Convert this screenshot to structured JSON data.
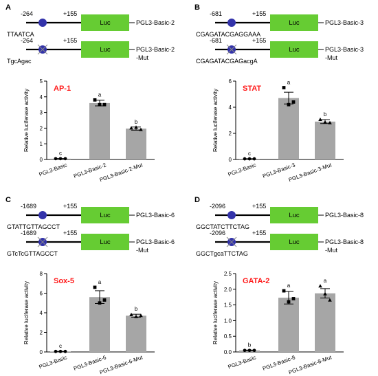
{
  "colors": {
    "bar_fill": "#a6a6a6",
    "luc_box": "#66cc33",
    "site_marker": "#3333aa",
    "tf_label": "#ff1a1a"
  },
  "panels": [
    {
      "letter": "A",
      "constructs": [
        {
          "start": "-264",
          "end": "+155",
          "luc": "Luc",
          "vector": [
            "PGL3-Basic-2"
          ],
          "sequence": "TTAATCA",
          "mutated": false
        },
        {
          "start": "-264",
          "end": "+155",
          "luc": "Luc",
          "vector": [
            "PGL3-Basic-2",
            "-Mut"
          ],
          "sequence": "TgcAgac",
          "mutated": true
        }
      ]
    },
    {
      "letter": "B",
      "constructs": [
        {
          "start": "-681",
          "end": "+155",
          "luc": "Luc",
          "vector": [
            "PGL3-Basic-3"
          ],
          "sequence": "CGAGATACGAGGAAA",
          "mutated": false
        },
        {
          "start": "-681",
          "end": "+155",
          "luc": "Luc",
          "vector": [
            "PGL3-Basic-3",
            "-Mut"
          ],
          "sequence": "CGAGATACGAGacgA",
          "mutated": true
        }
      ]
    },
    {
      "letter": "C",
      "constructs": [
        {
          "start": "-1689",
          "end": "+155",
          "luc": "Luc",
          "vector": [
            "PGL3-Basic-6"
          ],
          "sequence": "GTATTGTTAGCCT",
          "mutated": false
        },
        {
          "start": "-1689",
          "end": "+155",
          "luc": "Luc",
          "vector": [
            "PGL3-Basic-6",
            "-Mut"
          ],
          "sequence": "GTcTcGTTAGCCT",
          "mutated": true
        }
      ]
    },
    {
      "letter": "D",
      "constructs": [
        {
          "start": "-2096",
          "end": "+155",
          "luc": "Luc",
          "vector": [
            "PGL3-Basic-8"
          ],
          "sequence": "GGCTATCTTCTAG",
          "mutated": false
        },
        {
          "start": "-2096",
          "end": "+155",
          "luc": "Luc",
          "vector": [
            "PGL3-Basic-8",
            "-Mut"
          ],
          "sequence": "GGCTgcaTTCTAG",
          "mutated": true
        }
      ]
    }
  ],
  "chart_data": [
    {
      "type": "bar",
      "title": "AP-1",
      "ylabel": "Relative luciferase activity",
      "categories": [
        "PGL3-Basic",
        "PGL3-Basic-2",
        "PGL3-Basic-2-Mut"
      ],
      "ylim": [
        0,
        5
      ],
      "yticks": [
        "0",
        "1",
        "2",
        "3",
        "4",
        "5"
      ],
      "means": [
        0.05,
        3.6,
        1.97
      ],
      "sem": [
        0.01,
        0.18,
        0.1
      ],
      "points": [
        [
          0.05,
          0.05,
          0.05
        ],
        [
          3.8,
          3.5,
          3.5
        ],
        [
          2.0,
          2.05,
          1.9
        ]
      ],
      "significance": [
        "c",
        "a",
        "b"
      ]
    },
    {
      "type": "bar",
      "title": "STAT",
      "ylabel": "Relative luciferase activity",
      "categories": [
        "PGL3-Basic",
        "PGL3-Basic-3",
        "PGL3-Basic-3-Mut"
      ],
      "ylim": [
        0,
        6
      ],
      "yticks": [
        "0",
        "2",
        "4",
        "6"
      ],
      "means": [
        0.05,
        4.7,
        2.9
      ],
      "sem": [
        0.01,
        0.45,
        0.15
      ],
      "points": [
        [
          0.05,
          0.05,
          0.05
        ],
        [
          5.5,
          4.2,
          4.4
        ],
        [
          3.05,
          2.85,
          2.8
        ]
      ],
      "significance": [
        "c",
        "a",
        "b"
      ]
    },
    {
      "type": "bar",
      "title": "Sox-5",
      "ylabel": "Relative luciferase activity",
      "categories": [
        "PGL3-Basic",
        "PGL3-Basic-6",
        "PGL3-Basic-6-Mut"
      ],
      "ylim": [
        0,
        8
      ],
      "yticks": [
        "0",
        "2",
        "4",
        "6",
        "8"
      ],
      "means": [
        0.05,
        5.6,
        3.7
      ],
      "sem": [
        0.01,
        0.65,
        0.15
      ],
      "points": [
        [
          0.05,
          0.05,
          0.05
        ],
        [
          6.6,
          5.0,
          5.3
        ],
        [
          3.8,
          3.6,
          3.7
        ]
      ],
      "significance": [
        "c",
        "a",
        "b"
      ]
    },
    {
      "type": "bar",
      "title": "GATA-2",
      "ylabel": "Relative luciferase activity",
      "categories": [
        "PGL3-Basic",
        "PGL3-Basic-8",
        "PGL3-Basic-8-Mut"
      ],
      "ylim": [
        0,
        2.5
      ],
      "yticks": [
        "0.0",
        "0.5",
        "1.0",
        "1.5",
        "2.0",
        "2.5"
      ],
      "means": [
        0.05,
        1.73,
        1.87
      ],
      "sem": [
        0.01,
        0.2,
        0.15
      ],
      "points": [
        [
          0.05,
          0.05,
          0.05
        ],
        [
          1.95,
          1.6,
          1.7
        ],
        [
          2.1,
          1.85,
          1.65
        ]
      ],
      "significance": [
        "b",
        "a",
        "a"
      ]
    }
  ]
}
